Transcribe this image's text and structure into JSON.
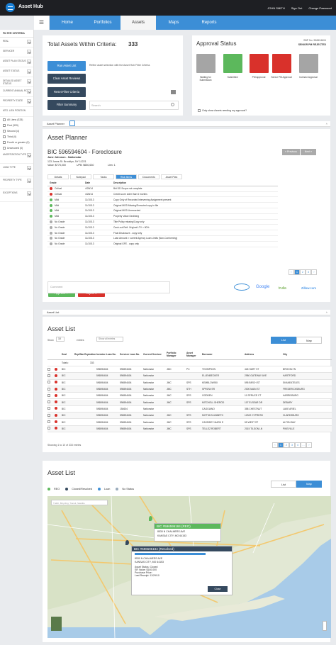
{
  "app": {
    "name": "Asset Hub",
    "user": "JOHN SMITH",
    "signout": "Sign Out",
    "change_password": "Change Password"
  },
  "nav": {
    "menu": "☰",
    "items": [
      "Home",
      "Portfolios",
      "Assets",
      "Maps",
      "Reports"
    ],
    "active": "Assets"
  },
  "sidebar": {
    "title": "FILTER CRITERIA",
    "rows": [
      "REAL",
      "SERVICER",
      "ASSET\nPLAN STATUS",
      "ASSET STATUS",
      "DETAILED ASSET STATUS",
      "CURRENT ANNUAL ROI",
      "PROPERTY STATE",
      "MTG. LIEN POSITION"
    ],
    "lien_options": [
      "All Liens (333)",
      "First (329)",
      "Second (4)",
      "Third (0)",
      "Fourth or greater (0)",
      "Unsecured (0)"
    ],
    "rows2": [
      "AMORTIZATION TYPE",
      "LOAN TYPE",
      "PROPERTY TYPE",
      "EXCEPTIONS"
    ]
  },
  "total": {
    "label": "Total Assets Within Criteria:",
    "count": "333",
    "run": "Run Asset List",
    "run_desc": "Refine asset selection with the Asset Hub Filter Criteria.",
    "clear": "Clear Asset Reviews",
    "reset": "Reset Filter Criteria",
    "summary": "Filter Summary",
    "search_placeholder": "Search"
  },
  "approval": {
    "title": "Approval Status",
    "ssp": "SBP No. 596594604",
    "role": "SENIOR PM REJECTED",
    "steps": [
      "Waiting for Submission",
      "Submitted",
      "PM Approval",
      "Senior PM Approval",
      "Investor Approval"
    ],
    "checkbox": "Only show Assets needing my approval?"
  },
  "planner": {
    "section": "Asset Planner",
    "title": "Asset Planner",
    "bic": "BIC 596594604 - Foreclosure",
    "name": "Jane Johnson - Nationstar",
    "addr": "123 Jones St. Brooklyn, NY 11221",
    "value": "Value: $775,000",
    "upb": "UPB: $650,630",
    "lien": "Lien: 1",
    "prev": "« Previous",
    "next": "Next »",
    "tabs": [
      "Details",
      "Notepad",
      "Tasks",
      "Risk Items",
      "Documents",
      "Asset Plan"
    ],
    "active_tab": "Risk Items",
    "cols": [
      "Grade",
      "Date",
      "Description"
    ],
    "rows": [
      [
        "Critical",
        "4/28/14",
        "Bid DD Scope not complete",
        "#d9312b"
      ],
      [
        "Critical",
        "4/28/14",
        "Credit score older than 6 months",
        "#d9312b"
      ],
      [
        "Mild",
        "11/10/13",
        "Copy Only of Recorded Intervening Assignment present",
        "#5cb85c"
      ],
      [
        "Mild",
        "11/10/13",
        "Original MOD Missing/Executed copy in file",
        "#5cb85c"
      ],
      [
        "Mild",
        "11/10/13",
        "Original MOD Unrecorded",
        "#5cb85c"
      ],
      [
        "Mild",
        "11/10/13",
        "Property Value Declining",
        "#5cb85c"
      ],
      [
        "No Grade",
        "11/10/13",
        "Title Policy missing/Copy only",
        "#aaa"
      ],
      [
        "No Grade",
        "11/10/13",
        "Cash-out Refi: Original LTV > 80%",
        "#aaa"
      ],
      [
        "No Grade",
        "11/10/13",
        "Final Disclosure - copy only",
        "#aaa"
      ],
      [
        "No Grade",
        "11/10/13",
        "Loan Amount > current Agency Loan Limits (Non-Conforming)",
        "#aaa"
      ],
      [
        "No Grade",
        "11/10/13",
        "Original GFE - copy only",
        "#aaa"
      ]
    ],
    "approve": "Approve ✓",
    "reject": "Reject ✕",
    "comment_placeholder": "Comment",
    "pages": [
      "‹",
      "1",
      "2",
      "3",
      "›"
    ],
    "logos": [
      "Google",
      "trulia",
      "Zillow.com"
    ]
  },
  "assetlist": {
    "section": "Asset List",
    "title": "Asset List",
    "show": "Show",
    "entries": "entries",
    "show_n": "10",
    "filter_label": "Show all entries",
    "toggle": [
      "List",
      "Map"
    ],
    "cols": [
      "Deal",
      "Rep/War Expiration",
      "Investor Loan No.",
      "Servicer Loan No.",
      "Current Servicer",
      "Portfolio Manager",
      "Asset Manager",
      "Borrower",
      "Address",
      "City"
    ],
    "totals": "Totals:",
    "totals_val": "333",
    "rows": [
      [
        "BIC",
        "",
        "596594604",
        "596594604",
        "Nationstar",
        "JMC",
        "PC",
        "THOMPSON",
        "426 HART ST",
        "BROOKLYN"
      ],
      [
        "BIC",
        "",
        "596594604",
        "596594604",
        "Nationstar",
        "",
        "",
        "ELLENBECKER",
        "2980 GATEWAY AVE",
        "HARTFORD"
      ],
      [
        "BIC",
        "",
        "596594604",
        "596594604",
        "Nationstar",
        "JMC",
        "SPS",
        "KEMBLOWSKI",
        "595 BIRCH ST",
        "SKANEATELES"
      ],
      [
        "BIC",
        "",
        "596594604",
        "596594604",
        "Nationstar",
        "JMC",
        "STH",
        "SPROW SR",
        "2000 MAIN ST",
        "FREDERICKSBURG"
      ],
      [
        "BIC",
        "",
        "596594604",
        "596594604",
        "Nationstar",
        "JMC",
        "SPS",
        "GODDEN",
        "11 SPRUCE CT",
        "HARRISBURG"
      ],
      [
        "BIC",
        "",
        "596594604",
        "596594604",
        "Nationstar",
        "JMC",
        "SPS",
        "MITCHELL SHEROD",
        "107 ELSEAR DR",
        "DEBARY"
      ],
      [
        "BIC",
        "",
        "596594604",
        "154604",
        "Nationstar",
        "",
        "",
        "CAGGIANO",
        "358 CHESTNUT",
        "LAKE ARIEL"
      ],
      [
        "BIC",
        "",
        "596594604",
        "596594604",
        "Nationstar",
        "JMC",
        "SPS",
        "MOTTA ELIZABETH",
        "12322 CYPRESS",
        "CLARKSBURG"
      ],
      [
        "BIC",
        "",
        "596594604",
        "596594604",
        "Nationstar",
        "JMC",
        "SPS",
        "CASSIDEY MARK E",
        "55 WEST ST",
        "ALTON BAY"
      ],
      [
        "BIC",
        "",
        "596594604",
        "596594604",
        "Nationstar",
        "JMC",
        "SPS",
        "TELLEZ ROBERT",
        "2015 TILSON LN",
        "PIKEVILLE"
      ]
    ],
    "showing": "Showing 1 to 10 of 333 entries",
    "pages": [
      "‹",
      "1",
      "2",
      "3",
      "4",
      "…",
      "›"
    ]
  },
  "assetmap": {
    "title": "Asset List",
    "toggle": [
      "List",
      "Map"
    ],
    "legend": [
      "REO",
      "Closed/Resolved",
      "Loan",
      "No Status"
    ],
    "search_placeholder": "Traffic, Bicycling, Transit, Satellite",
    "tip1": {
      "header": "BIC #596595184 (REO)",
      "line1": "8530 N CHALMERS AVE",
      "line2": "KANSAS CITY, MO 64153"
    },
    "tip2": {
      "header": "BIC #596595184 (Resolved)",
      "line1": "8530 N CHALMERS AVE",
      "line2": "KANSAS CITY, MO 64153",
      "s1": "Asset Status: Closed",
      "s2": "SR Value: $140,000",
      "s3": "Purchase Price:",
      "s4": "Last Receipt: 11/29/10",
      "close": "Close"
    }
  },
  "colors": {
    "accent": "#3c8ed6",
    "dark": "#35495e",
    "green": "#5cb85c",
    "red": "#d9312b"
  }
}
